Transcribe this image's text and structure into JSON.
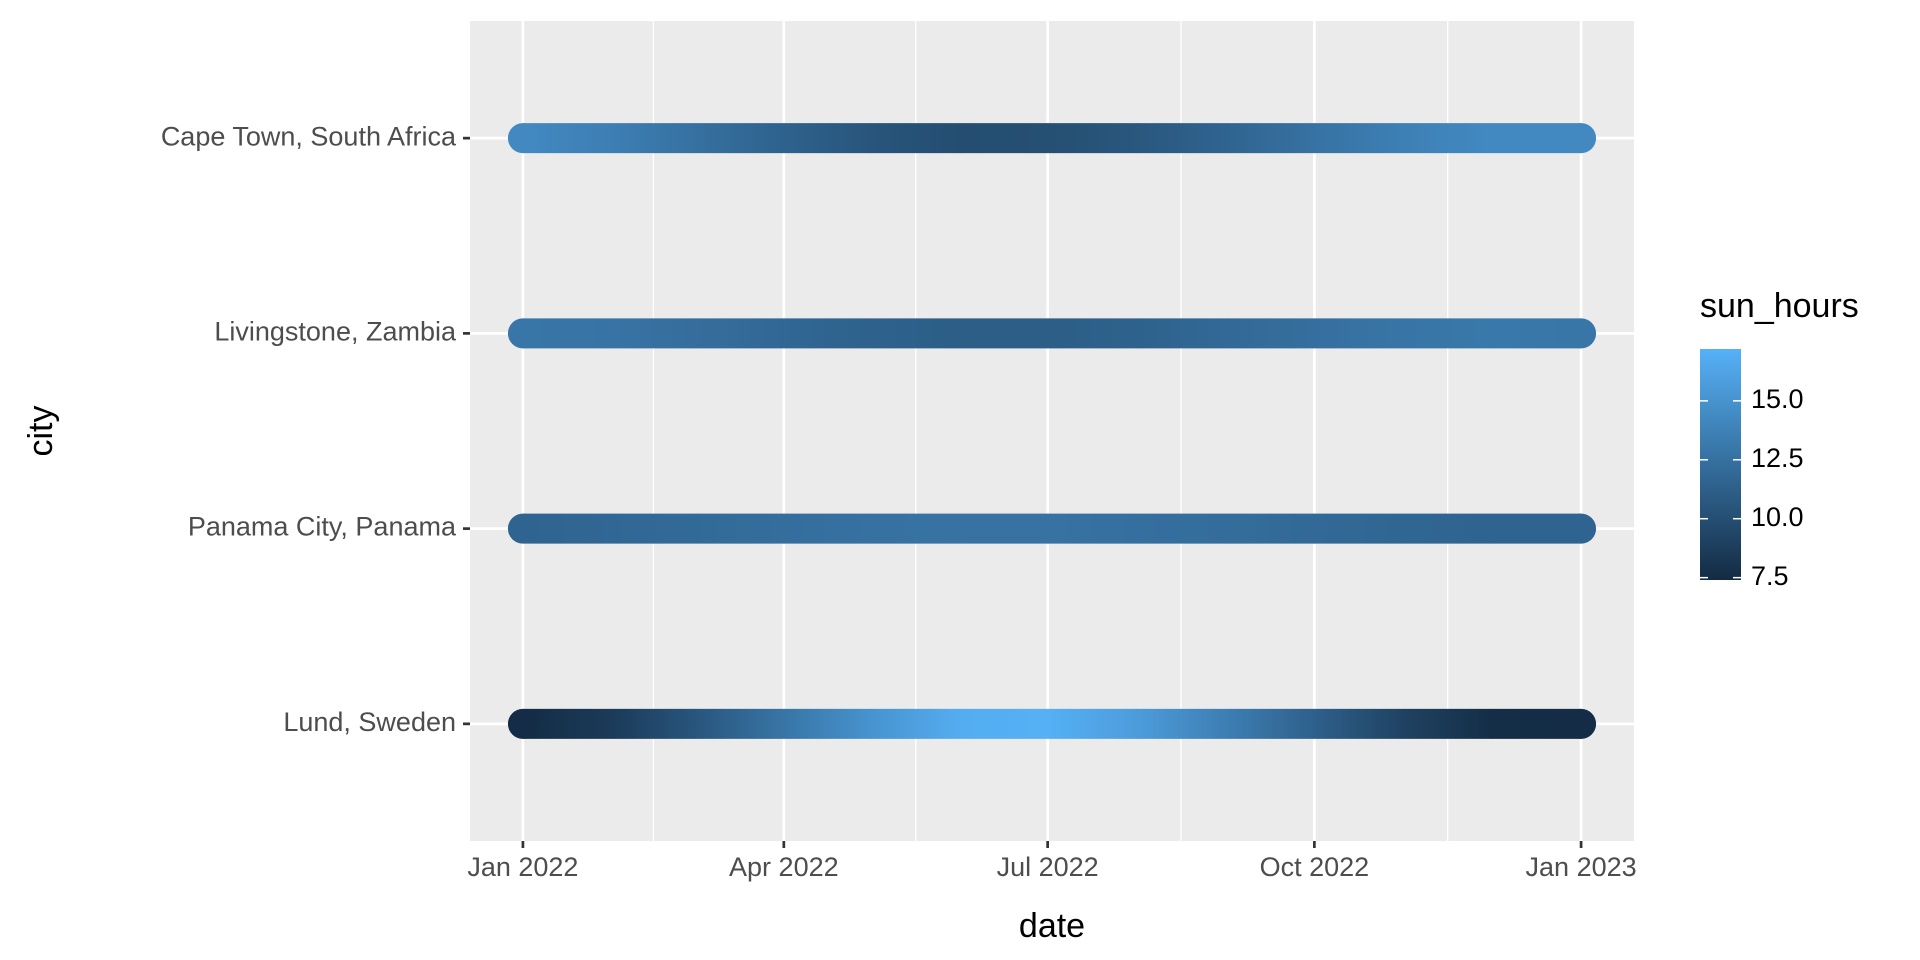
{
  "chart_data": {
    "type": "scatter",
    "x_label": "date",
    "y_label": "city",
    "x": [
      "Jan 2022",
      "Feb 2022",
      "Mar 2022",
      "Apr 2022",
      "May 2022",
      "Jun 2022",
      "Jul 2022",
      "Aug 2022",
      "Sep 2022",
      "Oct 2022",
      "Nov 2022",
      "Dec 2022",
      "Jan 2023"
    ],
    "xticks": [
      "Jan 2022",
      "Apr 2022",
      "Jul 2022",
      "Oct 2022",
      "Jan 2023"
    ],
    "categories": [
      "Cape Town, South Africa",
      "Livingstone, Zambia",
      "Panama City, Panama",
      "Lund, Sweden"
    ],
    "series": [
      {
        "name": "Cape Town, South Africa",
        "values": [
          14.3,
          13.5,
          12.5,
          11.4,
          10.5,
          9.9,
          10.0,
          10.6,
          11.6,
          12.6,
          13.6,
          14.3,
          14.3
        ]
      },
      {
        "name": "Livingstone, Zambia",
        "values": [
          12.9,
          12.7,
          12.3,
          11.8,
          11.4,
          11.1,
          11.1,
          11.4,
          11.9,
          12.4,
          12.8,
          13.0,
          12.9
        ]
      },
      {
        "name": "Panama City, Panama",
        "values": [
          11.6,
          11.8,
          12.0,
          12.3,
          12.5,
          12.6,
          12.6,
          12.4,
          12.2,
          11.9,
          11.7,
          11.6,
          11.6
        ]
      },
      {
        "name": "Lund, Sweden",
        "values": [
          7.5,
          8.6,
          10.5,
          12.8,
          15.0,
          16.9,
          17.1,
          15.7,
          13.5,
          11.3,
          9.1,
          7.6,
          7.5
        ]
      }
    ],
    "colorbar": {
      "title": "sun_hours",
      "lim": [
        7.4,
        17.2
      ],
      "low": "#132B43",
      "high": "#56B1F7",
      "ticks": [
        7.5,
        {
          "value": 10,
          "label": "10.0"
        },
        12.5,
        {
          "value": 15,
          "label": "15.0"
        }
      ]
    },
    "grid": true
  }
}
